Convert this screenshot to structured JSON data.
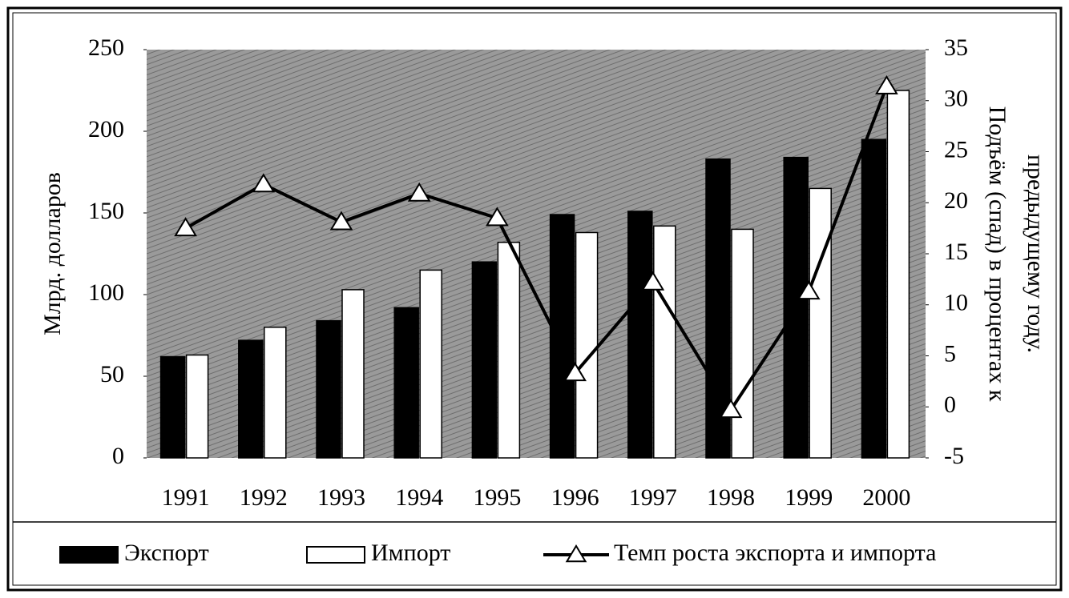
{
  "chart_data": {
    "type": "bar",
    "categories": [
      "1991",
      "1992",
      "1993",
      "1994",
      "1995",
      "1996",
      "1997",
      "1998",
      "1999",
      "2000"
    ],
    "series": [
      {
        "name": "Экспорт",
        "color": "#000000",
        "values": [
          62,
          72,
          84,
          92,
          120,
          149,
          151,
          183,
          184,
          195
        ]
      },
      {
        "name": "Импорт",
        "color": "#ffffff",
        "values": [
          63,
          80,
          103,
          115,
          132,
          138,
          142,
          140,
          165,
          225
        ]
      },
      {
        "name": "Темп роста экспорта и импорта",
        "color": "#000000",
        "type": "line",
        "axis": "y2",
        "values": [
          17.5,
          21.8,
          18.1,
          20.9,
          18.5,
          3.3,
          12.2,
          -0.3,
          11.3,
          31.4
        ]
      }
    ],
    "ylabel": "Млрд. долларов",
    "y2label": [
      "Подъём (спад) в процентах к",
      "предыдущему году."
    ],
    "ylim": [
      0,
      250
    ],
    "yticks": [
      0,
      50,
      100,
      150,
      200,
      250
    ],
    "y2lim": [
      -5,
      35
    ],
    "y2ticks": [
      -5,
      0,
      5,
      10,
      15,
      20,
      25,
      30,
      35
    ],
    "legend": "bottom"
  }
}
